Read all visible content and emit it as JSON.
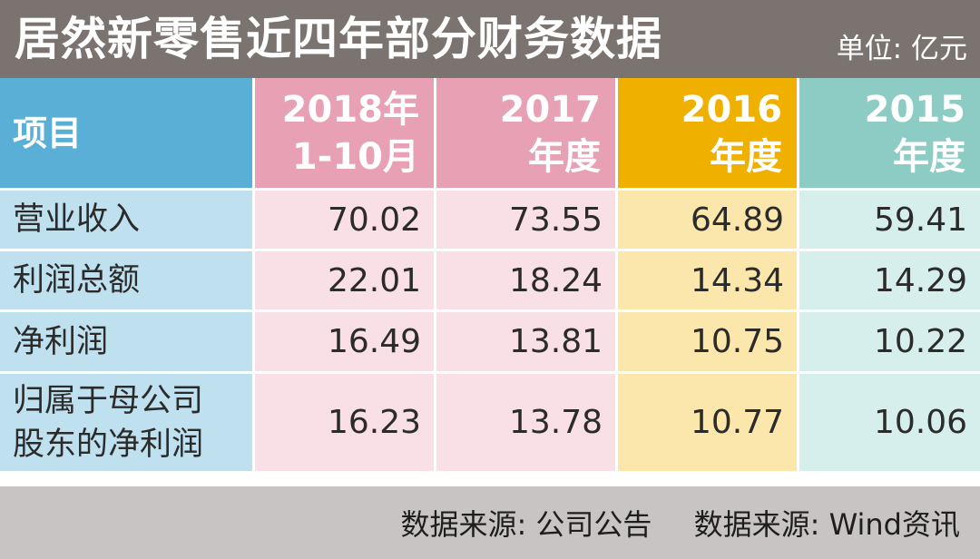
{
  "title": "居然新零售近四年部分财务数据",
  "unit": "单位: 亿元",
  "chart_data": {
    "type": "table",
    "title": "居然新零售近四年部分财务数据",
    "unit": "单位: 亿元",
    "columns": [
      {
        "line1": "项目",
        "line2": ""
      },
      {
        "line1": "2018年",
        "line2": "1-10月"
      },
      {
        "line1": "2017",
        "line2": "年度"
      },
      {
        "line1": "2016",
        "line2": "年度"
      },
      {
        "line1": "2015",
        "line2": "年度"
      }
    ],
    "rows": [
      {
        "label": [
          "营业收入"
        ],
        "values": [
          "70.02",
          "73.55",
          "64.89",
          "59.41"
        ]
      },
      {
        "label": [
          "利润总额"
        ],
        "values": [
          "22.01",
          "18.24",
          "14.34",
          "14.29"
        ]
      },
      {
        "label": [
          "净利润"
        ],
        "values": [
          "16.49",
          "13.81",
          "10.75",
          "10.22"
        ]
      },
      {
        "label": [
          "归属于母公司",
          "股东的净利润"
        ],
        "values": [
          "16.23",
          "13.78",
          "10.77",
          "10.06"
        ]
      }
    ],
    "colors": {
      "header_item": "#5aafd6",
      "header_2018": "#e8a0b4",
      "header_2017": "#e8a0b4",
      "header_2016": "#f0b000",
      "header_2015": "#8cccc5"
    }
  },
  "footer": {
    "source1": "数据来源: 公司公告",
    "source2": "数据来源: Wind资讯"
  }
}
